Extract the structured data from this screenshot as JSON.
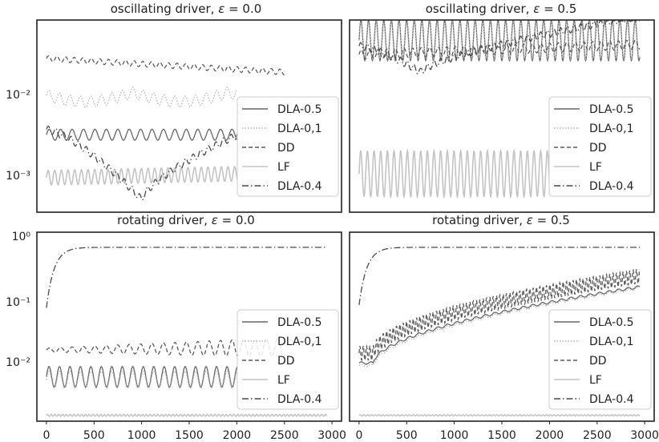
{
  "chart_data": [
    {
      "type": "line",
      "title": "oscillating driver, ε = 0.0",
      "title_prefix": "oscillating driver, ",
      "title_eps": "ε",
      "title_value": " = 0.0",
      "yscale": "log",
      "ylim": [
        0.0004,
        0.05
      ],
      "xlim": [
        -100,
        3100
      ],
      "ytick_labels": [
        "10⁻²",
        "10⁻³"
      ],
      "xtick_labels": [],
      "legend_position": "right",
      "series": [
        {
          "name": "DLA-0.5",
          "kind": "flat",
          "start": 0.0028,
          "end": 0.0028,
          "x_end": 2010,
          "amp": 0.06,
          "period": 120
        },
        {
          "name": "DLA-0,1",
          "kind": "hump",
          "start": 0.0072,
          "end": 0.0072,
          "x_end": 2010,
          "amp": 0.06,
          "period": 110,
          "bumps": 2,
          "bump_depth": 0.1
        },
        {
          "name": "DD",
          "kind": "flat",
          "start": 0.019,
          "end": 0.0135,
          "x_end": 2500,
          "amp": 0.03,
          "period": 90
        },
        {
          "name": "LF",
          "kind": "flat",
          "start": 0.00095,
          "end": 0.00105,
          "x_end": 2010,
          "amp": 0.08,
          "period": 70
        },
        {
          "name": "DLA-0.4",
          "kind": "dip",
          "start": 0.0032,
          "end": 0.0028,
          "x_end": 2010,
          "dip_x": 1000,
          "dip_min": 0.00055,
          "amp": 0.04,
          "period": 80
        }
      ]
    },
    {
      "type": "line",
      "title": "oscillating driver, ε = 0.5",
      "title_prefix": "oscillating driver, ",
      "title_eps": "ε",
      "title_value": " = 0.5",
      "yscale": "log",
      "ylim": [
        0.0004,
        0.05
      ],
      "xlim": [
        -100,
        3100
      ],
      "ytick_labels": [],
      "xtick_labels": [],
      "legend_position": "right",
      "series": [
        {
          "name": "DLA-0.5",
          "kind": "flat",
          "start": 0.03,
          "end": 0.03,
          "x_end": 2950,
          "amp": 0.22,
          "period": 80
        },
        {
          "name": "DLA-0,1",
          "kind": "flat",
          "start": 0.03,
          "end": 0.03,
          "x_end": 2950,
          "amp": 0.2,
          "period": 80
        },
        {
          "name": "DD",
          "kind": "flat",
          "start": 0.021,
          "end": 0.027,
          "x_end": 2950,
          "amp": 0.05,
          "period": 90
        },
        {
          "name": "LF",
          "kind": "flat",
          "start": 0.00105,
          "end": 0.00105,
          "x_end": 2010,
          "amp": 0.25,
          "period": 70
        },
        {
          "name": "DLA-0.4",
          "kind": "dip",
          "start": 0.026,
          "end": 0.055,
          "x_end": 2950,
          "dip_x": 650,
          "dip_min": 0.0135,
          "amp": 0.04,
          "period": 70
        }
      ]
    },
    {
      "type": "line",
      "title": "rotating driver, ε = 0.0",
      "title_prefix": "rotating driver, ",
      "title_eps": "ε",
      "title_value": " = 0.0",
      "yscale": "log",
      "ylim": [
        0.0012,
        1.6
      ],
      "xlim": [
        -100,
        3100
      ],
      "ytick_labels": [
        "10⁰",
        "10⁻¹",
        "10⁻²"
      ],
      "xtick_labels": [
        "0",
        "500",
        "1000",
        "1500",
        "2000",
        "2500",
        "3000"
      ],
      "legend_position": "right",
      "series": [
        {
          "name": "DLA-0.5",
          "kind": "flat",
          "start": 0.0065,
          "end": 0.0065,
          "x_end": 2010,
          "amp": 0.17,
          "period": 110
        },
        {
          "name": "DLA-0,1",
          "kind": "flat",
          "start": 0.0058,
          "end": 0.0058,
          "x_end": 2010,
          "amp": 0.14,
          "period": 110
        },
        {
          "name": "DD",
          "kind": "grow",
          "start": 0.018,
          "end": 0.02,
          "x_end": 2500,
          "amp": 0.08,
          "period": 120
        },
        {
          "name": "LF",
          "kind": "flat",
          "start": 0.0015,
          "end": 0.0015,
          "x_end": 2950,
          "amp": 0.015,
          "period": 40
        },
        {
          "name": "DLA-0.4",
          "kind": "sat",
          "start": 0.09,
          "end": 0.9,
          "x_end": 2950,
          "amp": 0.0,
          "period": 100
        }
      ]
    },
    {
      "type": "line",
      "title": "rotating driver, ε = 0.5",
      "title_prefix": "rotating driver, ",
      "title_eps": "ε",
      "title_value": " = 0.5",
      "yscale": "log",
      "ylim": [
        0.0012,
        1.6
      ],
      "xlim": [
        -100,
        3100
      ],
      "ytick_labels": [],
      "xtick_labels": [
        "0",
        "500",
        "1000",
        "1500",
        "2000",
        "2500",
        "3000"
      ],
      "legend_position": "right",
      "series": [
        {
          "name": "DLA-0.5",
          "kind": "rise",
          "start": 0.011,
          "end": 0.2,
          "x_end": 2950,
          "amp": 0.02,
          "period": 100
        },
        {
          "name": "DLA-0,1",
          "kind": "rise",
          "start": 0.01,
          "end": 0.19,
          "x_end": 2950,
          "amp": 0.02,
          "period": 100
        },
        {
          "name": "DD",
          "kind": "rise",
          "start": 0.016,
          "end": 0.3,
          "x_end": 2950,
          "amp": 0.12,
          "period": 35
        },
        {
          "name": "LF",
          "kind": "flat",
          "start": 0.0015,
          "end": 0.0015,
          "x_end": 2950,
          "amp": 0.01,
          "period": 40
        },
        {
          "name": "DLA-0.4",
          "kind": "sat",
          "start": 0.1,
          "end": 0.9,
          "x_end": 2950,
          "amp": 0.0,
          "period": 100
        }
      ]
    }
  ],
  "styles": {
    "DLA-0.5": {
      "color": "#666666",
      "dash": ""
    },
    "DLA-0,1": {
      "color": "#b5b5b5",
      "dash": "1.5,2"
    },
    "DD": {
      "color": "#5a5a5a",
      "dash": "5,3"
    },
    "LF": {
      "color": "#c4c4c4",
      "dash": ""
    },
    "DLA-0.4": {
      "color": "#4a4a4a",
      "dash": "8,3,1.5,3"
    }
  }
}
